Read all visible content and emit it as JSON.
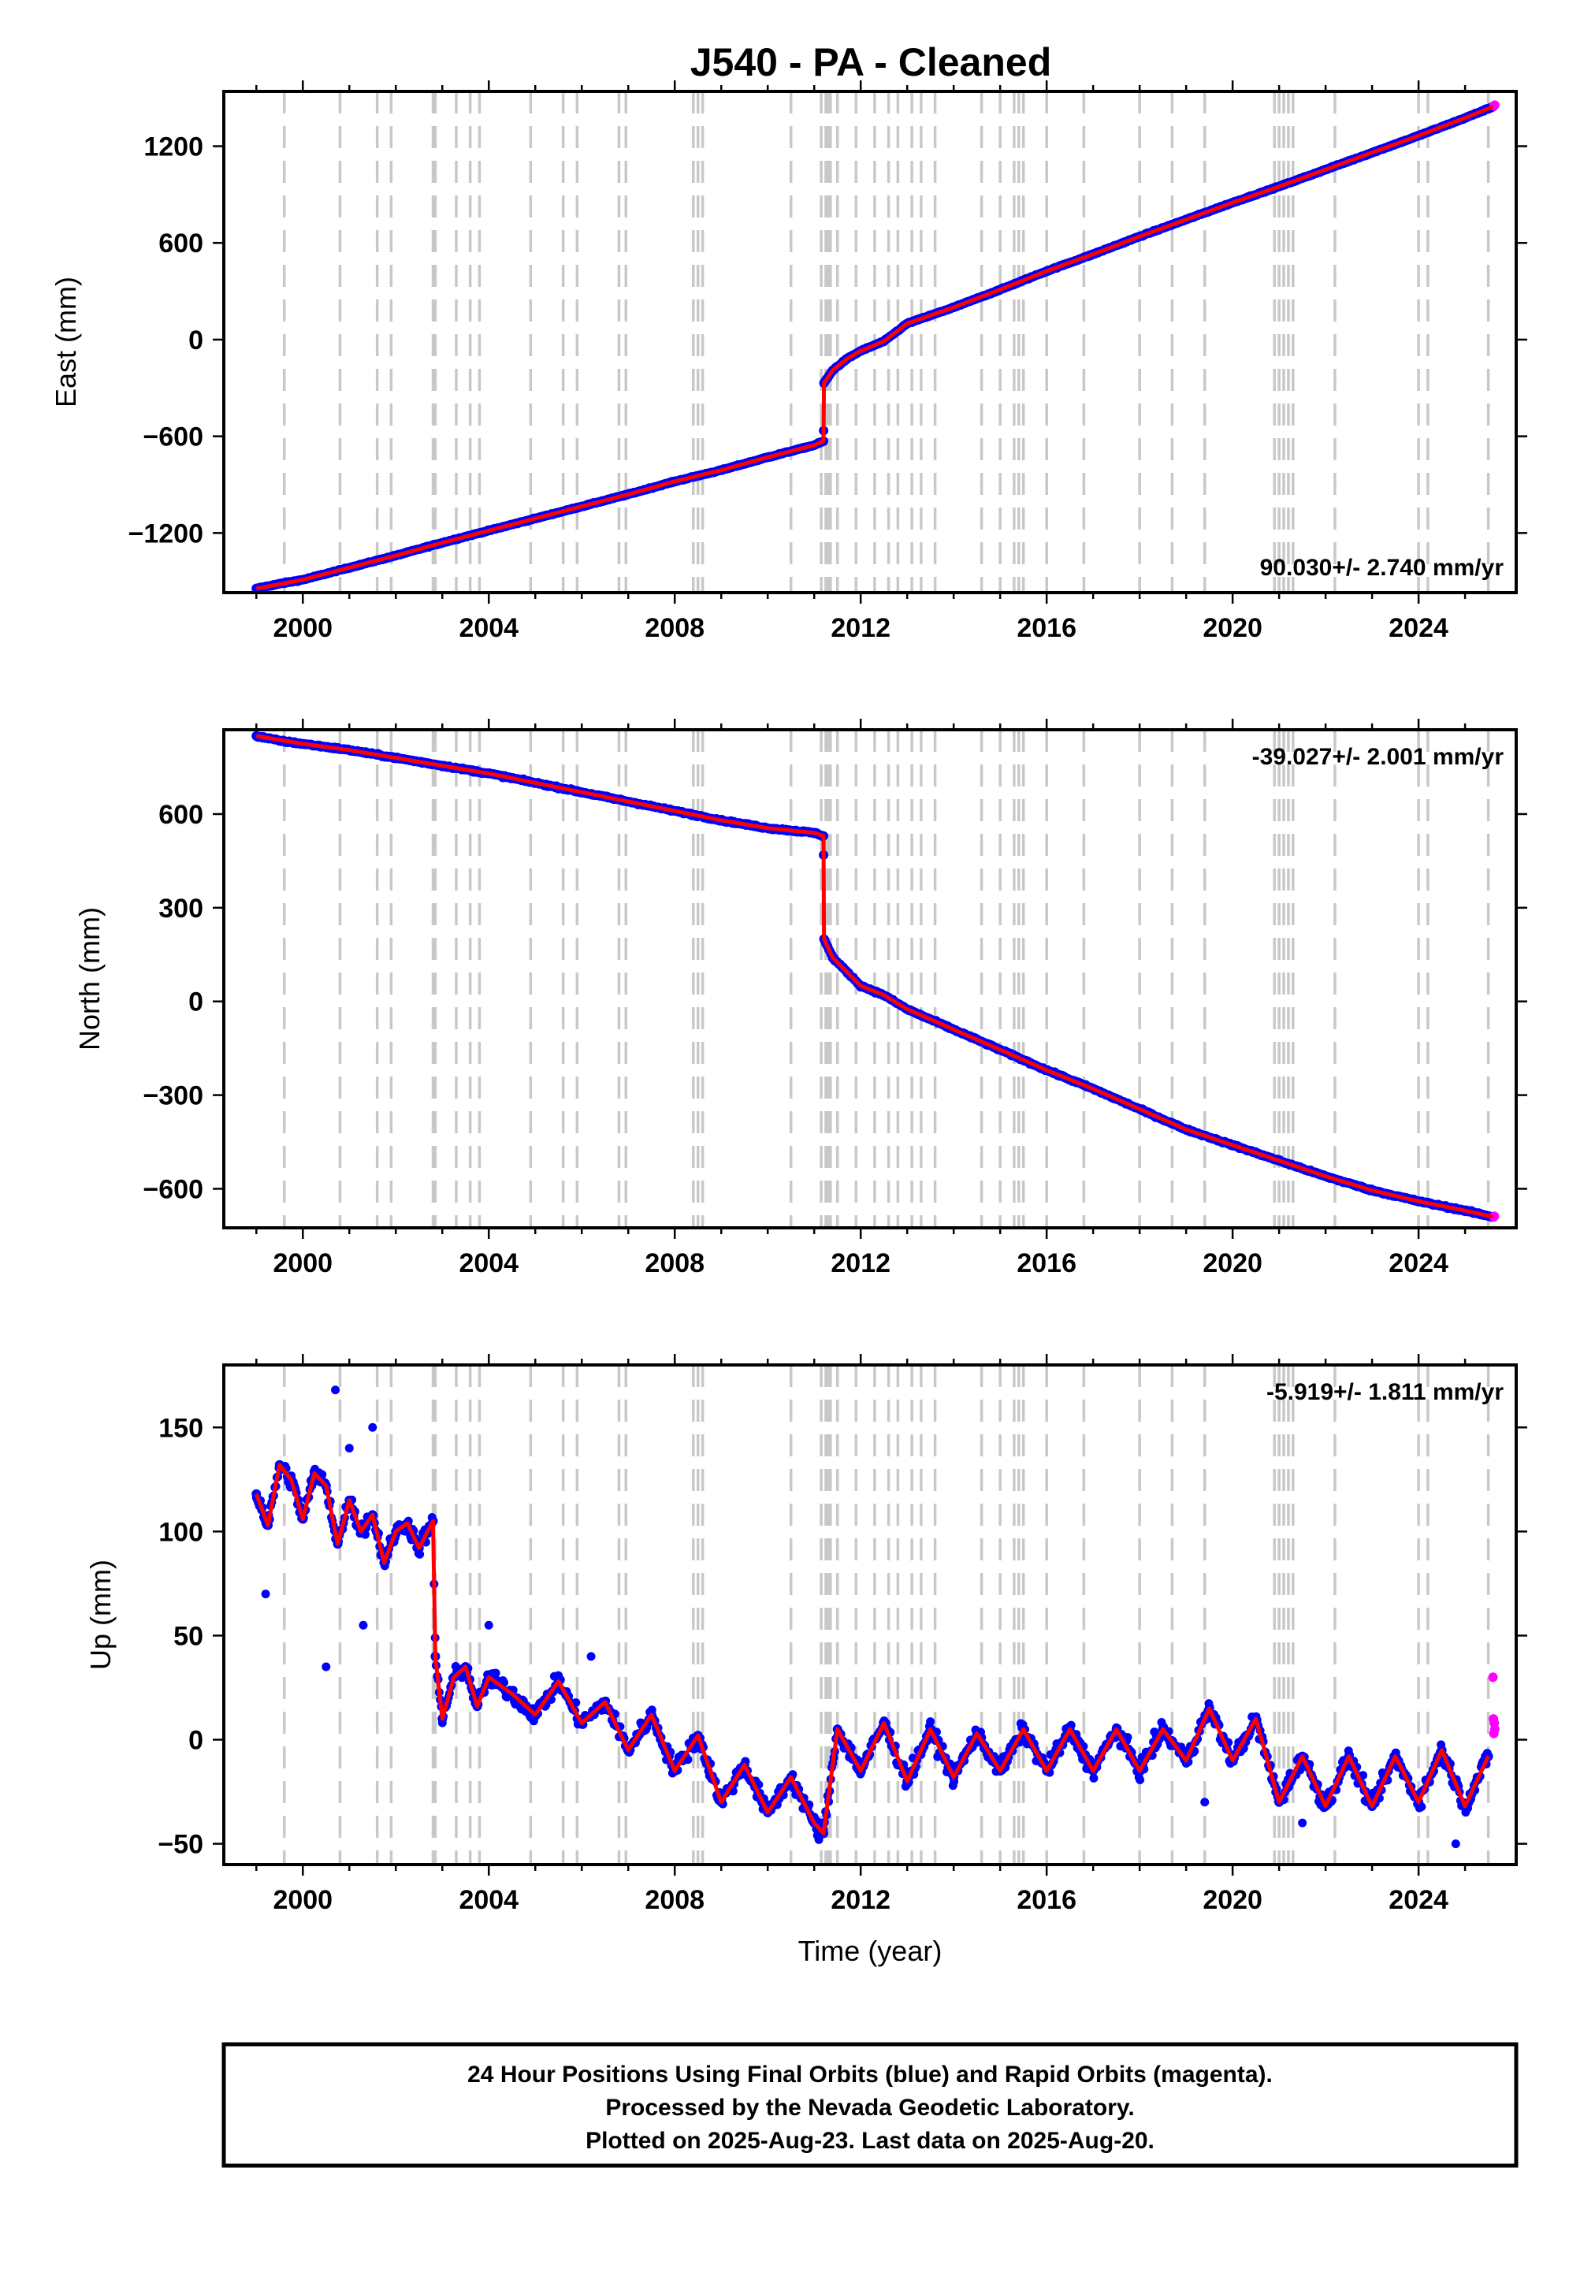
{
  "title": "J540  - PA - Cleaned",
  "colors": {
    "final_orbits": "#0000ff",
    "rapid_orbits": "#ff00ff",
    "model": "#ff0000",
    "event_lines": "#c8c8c8",
    "frame": "#000000"
  },
  "footer": {
    "lines": [
      "24 Hour Positions Using Final Orbits (blue) and Rapid Orbits (magenta).",
      "Processed by the Nevada Geodetic Laboratory.",
      "Plotted on 2025-Aug-23. Last data on 2025-Aug-20."
    ]
  },
  "chart_data": [
    {
      "type": "scatter",
      "panel": "east",
      "ylabel": "East (mm)",
      "xlabel": "",
      "xlim": [
        1998.3,
        2026.1
      ],
      "ylim": [
        -1570,
        1540
      ],
      "xticks": [
        2000,
        2004,
        2008,
        2012,
        2016,
        2020,
        2024
      ],
      "yticks": [
        -1200,
        -600,
        0,
        600,
        1200
      ],
      "ytick_labels": [
        "−1200",
        "−600",
        "0",
        "600",
        "1200"
      ],
      "rate_text": "90.030+/- 2.740 mm/yr",
      "rate_position": "bottom-right",
      "grid": false,
      "series": [
        {
          "style": "points",
          "x": [
            1999.0,
            1999.5,
            2000.0,
            2001.0,
            2002.0,
            2003.0,
            2004.0,
            2005.0,
            2006.0,
            2007.0,
            2008.0,
            2009.0,
            2010.0,
            2011.0,
            2011.2,
            2011.21,
            2011.4,
            2011.7,
            2012.0,
            2012.5,
            2013.0,
            2014.0,
            2015.0,
            2016.0,
            2017.0,
            2018.0,
            2019.0,
            2020.0,
            2021.0,
            2022.0,
            2023.0,
            2024.0,
            2025.0,
            2025.6
          ],
          "y": [
            -1545,
            -1515,
            -1490,
            -1415,
            -1340,
            -1260,
            -1185,
            -1110,
            -1035,
            -960,
            -880,
            -810,
            -730,
            -655,
            -630,
            -270,
            -190,
            -120,
            -70,
            -10,
            100,
            200,
            310,
            425,
            530,
            640,
            745,
            850,
            950,
            1055,
            1160,
            1265,
            1375,
            1445
          ]
        },
        {
          "style": "points",
          "x": [
            2025.62,
            2025.63,
            2025.64
          ],
          "y": [
            1450,
            1452,
            1455
          ]
        }
      ],
      "model": {
        "x": [
          1999.0,
          2000.0,
          2001.0,
          2002.0,
          2003.0,
          2004.0,
          2005.0,
          2006.0,
          2007.0,
          2008.0,
          2009.0,
          2010.0,
          2011.0,
          2011.2,
          2011.21,
          2011.4,
          2011.7,
          2012.0,
          2012.5,
          2013.0,
          2014.0,
          2015.0,
          2016.0,
          2017.0,
          2018.0,
          2019.0,
          2020.0,
          2021.0,
          2022.0,
          2023.0,
          2024.0,
          2025.0,
          2025.6
        ],
        "y": [
          -1545,
          -1490,
          -1415,
          -1340,
          -1260,
          -1185,
          -1110,
          -1035,
          -960,
          -880,
          -810,
          -730,
          -655,
          -630,
          -270,
          -190,
          -120,
          -70,
          -10,
          100,
          200,
          310,
          425,
          530,
          640,
          745,
          850,
          950,
          1055,
          1160,
          1265,
          1375,
          1445
        ]
      },
      "event_lines_x": [
        1999.6,
        2000.8,
        2001.6,
        2001.9,
        2002.8,
        2002.85,
        2003.3,
        2003.6,
        2003.8,
        2004.9,
        2005.6,
        2005.9,
        2006.8,
        2006.95,
        2008.4,
        2008.5,
        2008.6,
        2010.5,
        2011.15,
        2011.25,
        2011.3,
        2011.35,
        2011.5,
        2011.9,
        2012.3,
        2012.6,
        2012.8,
        2013.1,
        2013.3,
        2013.6,
        2014.6,
        2015.0,
        2015.3,
        2015.4,
        2015.5,
        2016.0,
        2016.8,
        2018.0,
        2018.7,
        2019.4,
        2020.9,
        2021.0,
        2021.1,
        2021.2,
        2021.3,
        2022.2,
        2024.0,
        2024.2,
        2025.5
      ]
    },
    {
      "type": "scatter",
      "panel": "north",
      "ylabel": "North (mm)",
      "xlabel": "",
      "xlim": [
        1998.3,
        2026.1
      ],
      "ylim": [
        -725,
        870
      ],
      "xticks": [
        2000,
        2004,
        2008,
        2012,
        2016,
        2020,
        2024
      ],
      "yticks": [
        -600,
        -300,
        0,
        300,
        600
      ],
      "ytick_labels": [
        "−600",
        "−300",
        "0",
        "300",
        "600"
      ],
      "rate_text": "-39.027+/- 2.001 mm/yr",
      "rate_position": "top-right",
      "grid": false,
      "series": [
        {
          "style": "points",
          "x": [
            1999.0,
            1999.5,
            2000.0,
            2001.0,
            2002.0,
            2003.0,
            2004.0,
            2005.0,
            2006.0,
            2007.0,
            2008.0,
            2009.0,
            2010.0,
            2011.0,
            2011.2,
            2011.21,
            2011.4,
            2011.7,
            2012.0,
            2012.5,
            2013.0,
            2014.0,
            2015.0,
            2016.0,
            2017.0,
            2018.0,
            2019.0,
            2020.0,
            2021.0,
            2022.0,
            2023.0,
            2024.0,
            2025.0,
            2025.6
          ],
          "y": [
            850,
            835,
            825,
            805,
            780,
            755,
            730,
            700,
            670,
            640,
            610,
            580,
            555,
            540,
            530,
            200,
            140,
            95,
            50,
            20,
            -25,
            -90,
            -155,
            -220,
            -280,
            -345,
            -410,
            -460,
            -510,
            -560,
            -605,
            -640,
            -670,
            -690
          ]
        },
        {
          "style": "points",
          "x": [
            2025.62,
            2025.63
          ],
          "y": [
            -690,
            -688
          ]
        }
      ],
      "model": {
        "x": [
          1999.0,
          2000.0,
          2001.0,
          2002.0,
          2003.0,
          2004.0,
          2005.0,
          2006.0,
          2007.0,
          2008.0,
          2009.0,
          2010.0,
          2011.0,
          2011.2,
          2011.21,
          2011.4,
          2011.7,
          2012.0,
          2012.5,
          2013.0,
          2014.0,
          2015.0,
          2016.0,
          2017.0,
          2018.0,
          2019.0,
          2020.0,
          2021.0,
          2022.0,
          2023.0,
          2024.0,
          2025.0,
          2025.6
        ],
        "y": [
          850,
          825,
          805,
          780,
          755,
          730,
          700,
          670,
          640,
          610,
          580,
          555,
          540,
          530,
          200,
          140,
          95,
          50,
          20,
          -25,
          -90,
          -155,
          -220,
          -280,
          -345,
          -410,
          -460,
          -510,
          -560,
          -605,
          -640,
          -670,
          -690
        ]
      },
      "event_lines_x": [
        1999.6,
        2000.8,
        2001.6,
        2001.9,
        2002.8,
        2002.85,
        2003.3,
        2003.6,
        2003.8,
        2004.9,
        2005.6,
        2005.9,
        2006.8,
        2006.95,
        2008.4,
        2008.5,
        2008.6,
        2010.5,
        2011.15,
        2011.25,
        2011.3,
        2011.35,
        2011.5,
        2011.9,
        2012.3,
        2012.6,
        2012.8,
        2013.1,
        2013.3,
        2013.6,
        2014.6,
        2015.0,
        2015.3,
        2015.4,
        2015.5,
        2016.0,
        2016.8,
        2018.0,
        2018.7,
        2019.4,
        2020.9,
        2021.0,
        2021.1,
        2021.2,
        2021.3,
        2022.2,
        2024.0,
        2024.2,
        2025.5
      ]
    },
    {
      "type": "scatter",
      "panel": "up",
      "ylabel": "Up (mm)",
      "xlabel": "Time (year)",
      "xlim": [
        1998.3,
        2026.1
      ],
      "ylim": [
        -60,
        180
      ],
      "xticks": [
        2000,
        2004,
        2008,
        2012,
        2016,
        2020,
        2024
      ],
      "yticks": [
        -50,
        0,
        50,
        100,
        150
      ],
      "ytick_labels": [
        "−50",
        "0",
        "50",
        "100",
        "150"
      ],
      "rate_text": "-5.919+/- 1.811 mm/yr",
      "rate_position": "top-right",
      "grid": false,
      "seasonal_amplitude": 13,
      "series": [
        {
          "style": "points",
          "x": [
            1999.0,
            1999.25,
            1999.5,
            1999.75,
            2000.0,
            2000.25,
            2000.5,
            2000.75,
            2001.0,
            2001.25,
            2001.5,
            2001.75,
            2002.0,
            2002.25,
            2002.5,
            2002.8,
            2002.85,
            2003.0,
            2003.25,
            2003.5,
            2003.75,
            2004.0,
            2004.5,
            2005.0,
            2005.5,
            2006.0,
            2006.5,
            2007.0,
            2007.5,
            2008.0,
            2008.5,
            2009.0,
            2009.5,
            2010.0,
            2010.5,
            2011.0,
            2011.2,
            2011.5,
            2012.0,
            2012.5,
            2013.0,
            2013.5,
            2014.0,
            2014.5,
            2015.0,
            2015.5,
            2016.0,
            2016.5,
            2017.0,
            2017.5,
            2018.0,
            2018.5,
            2019.0,
            2019.5,
            2020.0,
            2020.5,
            2021.0,
            2021.5,
            2022.0,
            2022.5,
            2023.0,
            2023.5,
            2024.0,
            2024.5,
            2025.0,
            2025.5
          ],
          "y": [
            118,
            103,
            132,
            125,
            106,
            128,
            122,
            94,
            115,
            100,
            108,
            85,
            100,
            104,
            92,
            105,
            40,
            10,
            30,
            35,
            16,
            30,
            22,
            12,
            28,
            8,
            18,
            -5,
            12,
            -15,
            2,
            -30,
            -12,
            -35,
            -18,
            -40,
            -45,
            5,
            -15,
            8,
            -20,
            5,
            -18,
            3,
            -15,
            5,
            -15,
            5,
            -15,
            5,
            -15,
            5,
            -10,
            15,
            -10,
            10,
            -30,
            -8,
            -32,
            -8,
            -32,
            -8,
            -30,
            -5,
            -32,
            -8
          ],
          "outliers_x": [
            1999.2,
            2000.5,
            2000.7,
            2001.0,
            2001.3,
            2001.5,
            2004.0,
            2006.2,
            2011.1,
            2019.4,
            2021.5,
            2024.8
          ],
          "outliers_y": [
            70,
            35,
            168,
            140,
            55,
            150,
            55,
            40,
            -48,
            -30,
            -40,
            -50
          ]
        },
        {
          "style": "points",
          "x": [
            2025.6,
            2025.61,
            2025.62,
            2025.63,
            2025.64
          ],
          "y": [
            30,
            10,
            3,
            8,
            5
          ]
        }
      ],
      "model": {
        "x": [
          1999.0,
          1999.25,
          1999.5,
          1999.75,
          2000.0,
          2000.25,
          2000.5,
          2000.75,
          2001.0,
          2001.25,
          2001.5,
          2001.75,
          2002.0,
          2002.25,
          2002.5,
          2002.8,
          2002.85,
          2003.0,
          2003.25,
          2003.5,
          2003.75,
          2004.0,
          2004.5,
          2005.0,
          2005.5,
          2006.0,
          2006.5,
          2007.0,
          2007.5,
          2008.0,
          2008.5,
          2009.0,
          2009.5,
          2010.0,
          2010.5,
          2011.0,
          2011.2,
          2011.5,
          2012.0,
          2012.5,
          2013.0,
          2013.5,
          2014.0,
          2014.5,
          2015.0,
          2015.5,
          2016.0,
          2016.5,
          2017.0,
          2017.5,
          2018.0,
          2018.5,
          2019.0,
          2019.5,
          2020.0,
          2020.5,
          2021.0,
          2021.5,
          2022.0,
          2022.5,
          2023.0,
          2023.5,
          2024.0,
          2024.5,
          2025.0,
          2025.5
        ],
        "y": [
          118,
          103,
          132,
          125,
          106,
          128,
          122,
          94,
          115,
          100,
          108,
          85,
          100,
          104,
          92,
          105,
          40,
          10,
          30,
          35,
          16,
          30,
          22,
          12,
          28,
          8,
          18,
          -5,
          12,
          -15,
          2,
          -30,
          -12,
          -35,
          -18,
          -40,
          -45,
          5,
          -15,
          8,
          -20,
          5,
          -18,
          3,
          -15,
          5,
          -15,
          5,
          -15,
          5,
          -15,
          5,
          -10,
          15,
          -10,
          10,
          -30,
          -8,
          -32,
          -8,
          -32,
          -8,
          -30,
          -5,
          -32,
          -8
        ]
      },
      "event_lines_x": [
        1999.6,
        2000.8,
        2001.6,
        2001.9,
        2002.8,
        2002.85,
        2003.3,
        2003.6,
        2003.8,
        2004.9,
        2005.6,
        2005.9,
        2006.8,
        2006.95,
        2008.4,
        2008.5,
        2008.6,
        2010.5,
        2011.15,
        2011.25,
        2011.3,
        2011.35,
        2011.5,
        2011.9,
        2012.3,
        2012.6,
        2012.8,
        2013.1,
        2013.3,
        2013.6,
        2014.6,
        2015.0,
        2015.3,
        2015.4,
        2015.5,
        2016.0,
        2016.8,
        2018.0,
        2018.7,
        2019.4,
        2020.9,
        2021.0,
        2021.1,
        2021.2,
        2021.3,
        2022.2,
        2024.0,
        2024.2,
        2025.5
      ]
    }
  ]
}
